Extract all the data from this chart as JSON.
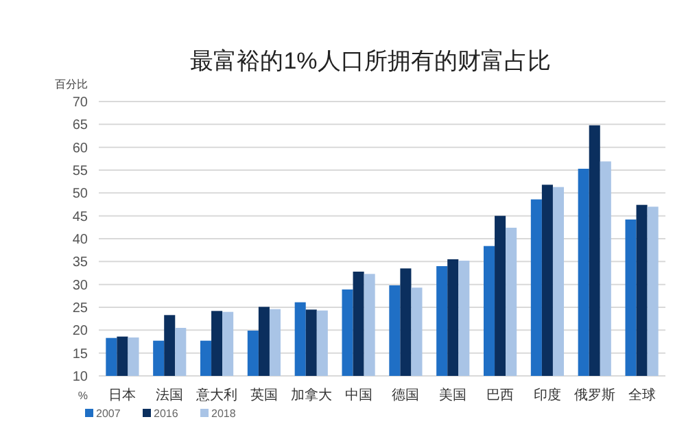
{
  "chart_data": {
    "type": "bar",
    "title": "最富裕的1%人口所拥有的财富占比",
    "ylabel": "百分比",
    "annotations": [
      "%"
    ],
    "categories": [
      "日本",
      "法国",
      "意大利",
      "英国",
      "加拿大",
      "中国",
      "德国",
      "美国",
      "巴西",
      "印度",
      "俄罗斯",
      "全球"
    ],
    "series": [
      {
        "name": "2007",
        "color": "#1f6fc5",
        "values": [
          18.3,
          17.7,
          17.7,
          19.9,
          26.1,
          28.9,
          29.8,
          34.0,
          38.4,
          48.6,
          55.3,
          44.2
        ]
      },
      {
        "name": "2016",
        "color": "#0b2f5e",
        "values": [
          18.6,
          23.3,
          24.2,
          25.1,
          24.5,
          32.8,
          33.5,
          35.5,
          45.0,
          51.8,
          64.8,
          47.4
        ]
      },
      {
        "name": "2018",
        "color": "#a9c4e6",
        "values": [
          18.4,
          20.5,
          24.0,
          24.6,
          24.3,
          32.3,
          29.3,
          35.2,
          42.4,
          51.3,
          56.9,
          47.0
        ]
      }
    ],
    "ylim": [
      10,
      70
    ],
    "yticks": [
      10,
      15,
      20,
      25,
      30,
      35,
      40,
      45,
      50,
      55,
      60,
      65,
      70
    ],
    "grid": "y",
    "legend": "bottom left"
  }
}
